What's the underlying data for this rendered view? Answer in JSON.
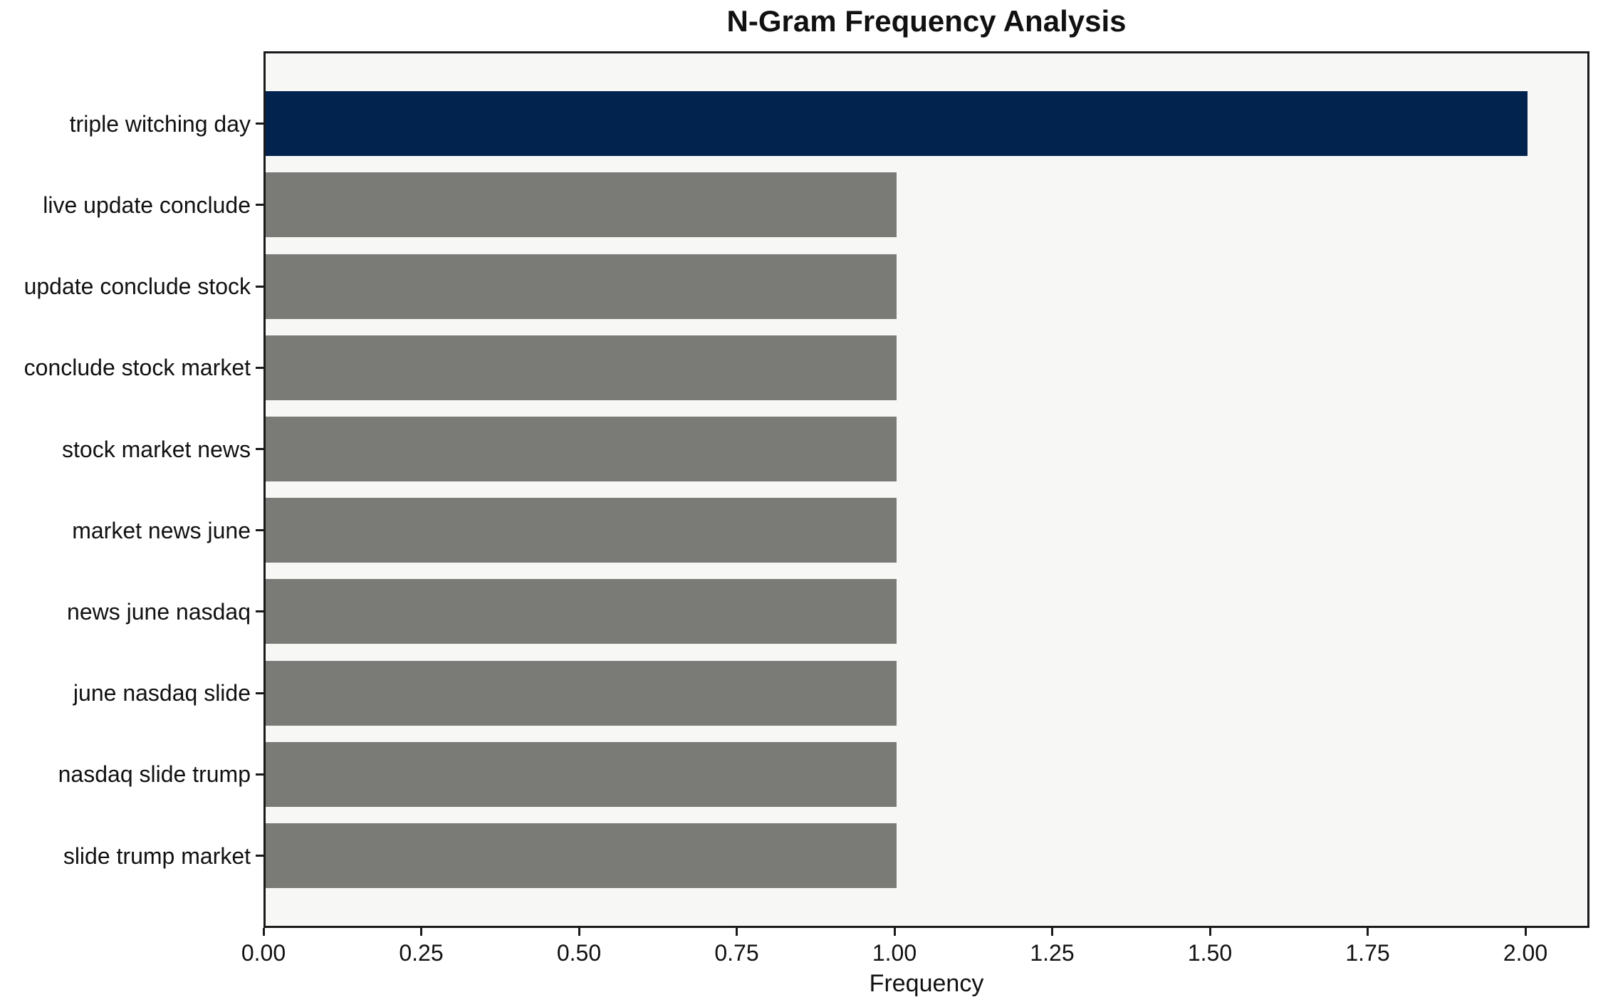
{
  "title": "N-Gram Frequency Analysis",
  "chart_data": {
    "type": "bar",
    "orientation": "horizontal",
    "title": "N-Gram Frequency Analysis",
    "xlabel": "Frequency",
    "ylabel": "",
    "categories": [
      "triple witching day",
      "live update conclude",
      "update conclude stock",
      "conclude stock market",
      "stock market news",
      "market news june",
      "news june nasdaq",
      "june nasdaq slide",
      "nasdaq slide trump",
      "slide trump market"
    ],
    "values": [
      2,
      1,
      1,
      1,
      1,
      1,
      1,
      1,
      1,
      1
    ],
    "bar_colors": [
      "#02234d",
      "#7a7a77",
      "#7a7a77",
      "#7a7a77",
      "#7a7a77",
      "#7a7a77",
      "#7a7a77",
      "#7a7a77",
      "#7a7a77",
      "#7a7a77"
    ],
    "xlim": [
      0,
      2.102
    ],
    "x_ticks": [
      {
        "value": 0.0,
        "label": "0.00"
      },
      {
        "value": 0.25,
        "label": "0.25"
      },
      {
        "value": 0.5,
        "label": "0.50"
      },
      {
        "value": 0.75,
        "label": "0.75"
      },
      {
        "value": 1.0,
        "label": "1.00"
      },
      {
        "value": 1.25,
        "label": "1.25"
      },
      {
        "value": 1.5,
        "label": "1.50"
      },
      {
        "value": 1.75,
        "label": "1.75"
      },
      {
        "value": 2.0,
        "label": "2.00"
      }
    ],
    "grid": false,
    "legend": null,
    "colors": {
      "highlight_bar": "#02234d",
      "default_bar": "#7a7a77",
      "plot_background": "#f7f7f6",
      "figure_background": "#ffffff",
      "axis": "#1a1a1a",
      "text": "#111111"
    }
  }
}
